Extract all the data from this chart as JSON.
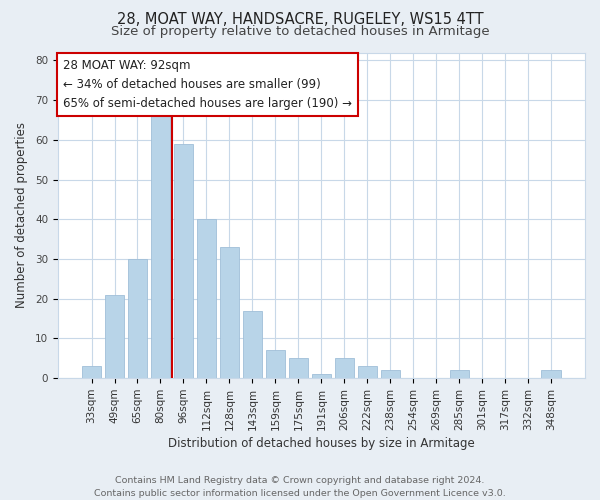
{
  "title": "28, MOAT WAY, HANDSACRE, RUGELEY, WS15 4TT",
  "subtitle": "Size of property relative to detached houses in Armitage",
  "xlabel": "Distribution of detached houses by size in Armitage",
  "ylabel": "Number of detached properties",
  "bar_labels": [
    "33sqm",
    "49sqm",
    "65sqm",
    "80sqm",
    "96sqm",
    "112sqm",
    "128sqm",
    "143sqm",
    "159sqm",
    "175sqm",
    "191sqm",
    "206sqm",
    "222sqm",
    "238sqm",
    "254sqm",
    "269sqm",
    "285sqm",
    "301sqm",
    "317sqm",
    "332sqm",
    "348sqm"
  ],
  "bar_heights": [
    3,
    21,
    30,
    66,
    59,
    40,
    33,
    17,
    7,
    5,
    1,
    5,
    3,
    2,
    0,
    0,
    2,
    0,
    0,
    0,
    2
  ],
  "bar_color": "#b8d4e8",
  "bar_edge_color": "#a0bfd8",
  "highlight_line_color": "#cc0000",
  "ylim": [
    0,
    82
  ],
  "yticks": [
    0,
    10,
    20,
    30,
    40,
    50,
    60,
    70,
    80
  ],
  "annotation_box_text": "28 MOAT WAY: 92sqm\n← 34% of detached houses are smaller (99)\n65% of semi-detached houses are larger (190) →",
  "annotation_box_color": "#ffffff",
  "annotation_box_edge_color": "#cc0000",
  "footer_line1": "Contains HM Land Registry data © Crown copyright and database right 2024.",
  "footer_line2": "Contains public sector information licensed under the Open Government Licence v3.0.",
  "background_color": "#e8eef4",
  "plot_background_color": "#ffffff",
  "grid_color": "#c8d8e8",
  "title_fontsize": 10.5,
  "subtitle_fontsize": 9.5,
  "label_fontsize": 8.5,
  "tick_fontsize": 7.5,
  "annotation_fontsize": 8.5,
  "footer_fontsize": 6.8
}
